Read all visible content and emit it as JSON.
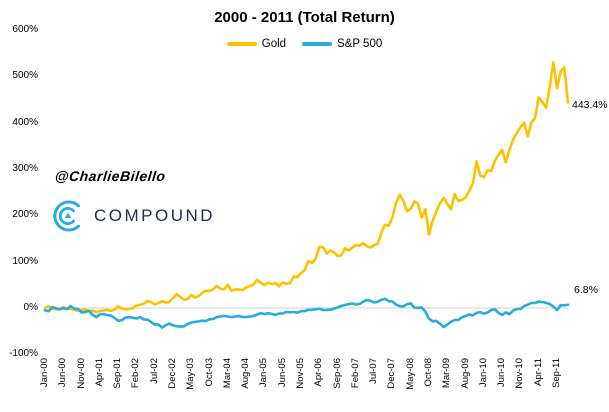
{
  "title": "2000 - 2011 (Total Return)",
  "watermark": "@CharlieBilello",
  "logo": {
    "text": "COMPOUND"
  },
  "colors": {
    "gold": "#FFC000",
    "sp500": "#29ABE2",
    "gridline": "#D2D2D2",
    "logo_blue": "#29ABE2",
    "logo_navy": "#1e2b4f"
  },
  "chart_data": {
    "type": "line",
    "title": "2000 - 2011 (Total Return)",
    "legend_position": "top-center",
    "grid": "zero-line-only",
    "ylim": [
      -100,
      600
    ],
    "y_tick_labels": [
      "600%",
      "500%",
      "400%",
      "300%",
      "200%",
      "100%",
      "0%",
      "-100%"
    ],
    "x_tick_labels": [
      "Jan-00",
      "Jun-00",
      "Nov-00",
      "Apr-01",
      "Sep-01",
      "Feb-02",
      "Jul-02",
      "Dec-02",
      "May-03",
      "Oct-03",
      "Mar-04",
      "Aug-04",
      "Jan-05",
      "Jun-05",
      "Nov-05",
      "Apr-06",
      "Sep-06",
      "Feb-07",
      "Jul-07",
      "Dec-07",
      "May-08",
      "Oct-08",
      "Mar-09",
      "Aug-09",
      "Jan-10",
      "Jun-10",
      "Nov-10",
      "Apr-11",
      "Sep-11"
    ],
    "x_tick_step_months": 5,
    "x_range": "Jan-00 to Dec-11, monthly",
    "series": [
      {
        "name": "Gold",
        "color": "#FFC000",
        "end_label": "443.4%",
        "values": [
          0.4,
          3.9,
          -2.1,
          -2.5,
          -3.5,
          2.1,
          -2.1,
          -1.8,
          -3.2,
          -6.4,
          -4.6,
          -3.5,
          -6.4,
          -5.7,
          -8.9,
          -6.7,
          -5.3,
          -4.3,
          -6.0,
          -3.2,
          3.9,
          -1.4,
          -2.8,
          -2.1,
          0.0,
          5.0,
          6.7,
          9.2,
          15.6,
          12.8,
          7.8,
          10.6,
          14.5,
          12.1,
          13.1,
          21.3,
          30.1,
          24.1,
          18.4,
          19.1,
          28.0,
          22.7,
          25.5,
          33.0,
          37.6,
          36.2,
          41.1,
          47.5,
          41.5,
          40.1,
          50.0,
          37.2,
          39.4,
          40.1,
          38.7,
          44.3,
          47.2,
          50.7,
          60.6,
          54.3,
          49.6,
          54.3,
          51.4,
          54.3,
          46.8,
          55.0,
          52.1,
          53.5,
          67.7,
          66.7,
          75.5,
          81.9,
          101.4,
          97.2,
          106.4,
          131.9,
          131.6,
          117.4,
          124.1,
          120.9,
          112.4,
          113.8,
          129.1,
          124.1,
          130.5,
          135.5,
          134.4,
          140.1,
          133.7,
          130.5,
          135.8,
          138.3,
          163.5,
          179.8,
          177.7,
          195.4,
          227.3,
          244.3,
          230.9,
          208.9,
          213.8,
          229.8,
          225.5,
          195.4,
          213.5,
          158.9,
          188.7,
          208.2,
          225.9,
          237.6,
          224.8,
          213.1,
          245.7,
          231.2,
          233.0,
          238.7,
          252.8,
          268.8,
          316.7,
          285.5,
          282.3,
          296.5,
          295.4,
          318.1,
          330.9,
          341.1,
          314.5,
          341.8,
          363.5,
          377.3,
          390.4,
          400.0,
          370.6,
          400.4,
          410.3,
          454.3,
          444.7,
          432.6,
          477.3,
          530.0,
          474.5,
          510.6,
          519.1,
          443.4
        ]
      },
      {
        "name": "S&P 500",
        "color": "#29ABE2",
        "end_label": "6.8%",
        "values": [
          -5.0,
          -6.8,
          2.3,
          -0.8,
          -2.9,
          -0.5,
          -2.1,
          4.0,
          -1.5,
          -1.9,
          -9.6,
          -9.1,
          -5.9,
          -14.5,
          -19.9,
          -13.7,
          -13.1,
          -15.2,
          -16.0,
          -21.3,
          -27.7,
          -26.3,
          -20.6,
          -19.9,
          -21.1,
          -22.6,
          -19.7,
          -24.6,
          -25.1,
          -30.4,
          -35.8,
          -35.4,
          -42.4,
          -37.3,
          -33.6,
          -37.6,
          -39.2,
          -40.1,
          -39.5,
          -34.5,
          -31.0,
          -30.1,
          -28.9,
          -27.5,
          -28.3,
          -24.2,
          -23.5,
          -19.7,
          -18.3,
          -17.1,
          -18.4,
          -19.7,
          -18.5,
          -17.0,
          -19.7,
          -19.4,
          -18.5,
          -17.3,
          -14.0,
          -11.0,
          -13.2,
          -11.3,
          -12.9,
          -14.6,
          -11.8,
          -11.7,
          -8.5,
          -9.3,
          -8.6,
          -10.1,
          -6.7,
          -6.6,
          -4.2,
          -3.9,
          -2.8,
          -1.5,
          -4.4,
          -4.3,
          -3.7,
          -1.4,
          1.1,
          4.4,
          6.4,
          8.1,
          9.7,
          7.5,
          8.7,
          13.5,
          17.5,
          15.5,
          11.9,
          13.6,
          17.8,
          19.7,
          14.7,
          14.1,
          7.3,
          3.8,
          3.4,
          8.5,
          9.9,
          0.7,
          -0.1,
          1.3,
          -7.7,
          -23.2,
          -28.7,
          -27.9,
          -34.1,
          -41.1,
          -35.9,
          -29.7,
          -25.8,
          -25.6,
          -20.0,
          -17.1,
          -14.0,
          -15.7,
          -10.6,
          -8.9,
          -12.4,
          -9.7,
          -4.3,
          -2.8,
          -10.6,
          -15.2,
          -9.3,
          -13.4,
          -5.7,
          -2.1,
          -2.1,
          4.4,
          7.1,
          10.7,
          10.7,
          14.0,
          12.8,
          10.9,
          8.7,
          2.8,
          -4.4,
          6.0,
          5.8,
          6.8
        ]
      }
    ]
  }
}
